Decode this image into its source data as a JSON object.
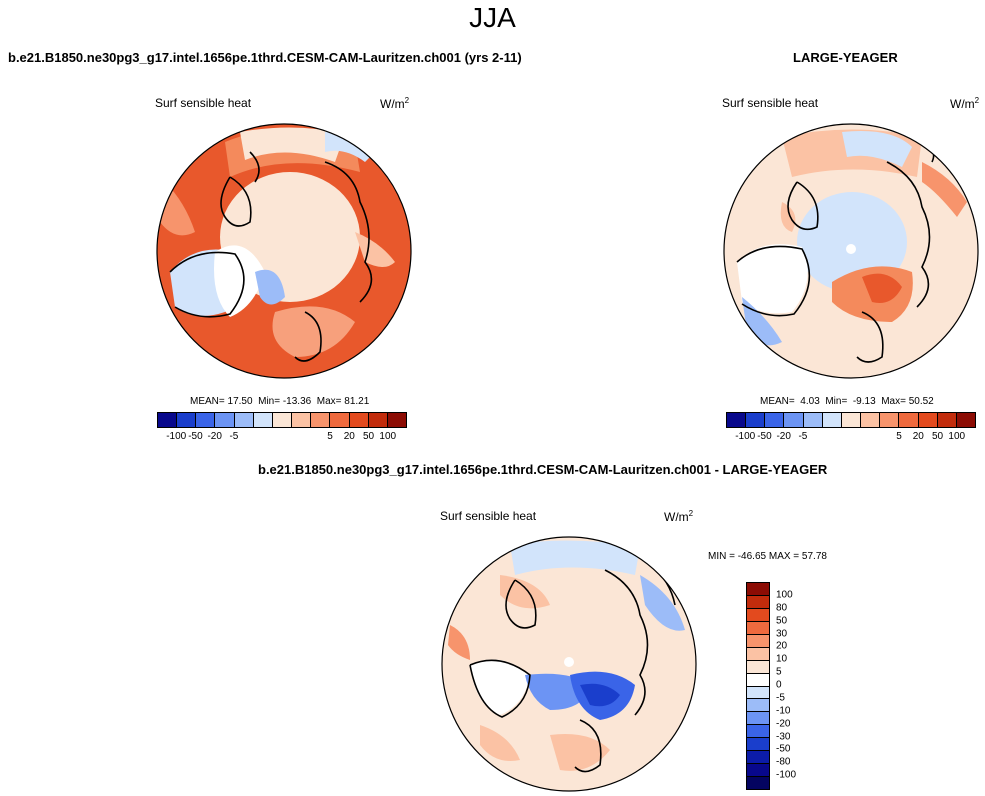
{
  "season": "JJA",
  "panels": {
    "model": {
      "title": "b.e21.B1850.ne30pg3_g17.intel.1656pe.1thrd.CESM-CAM-Lauritzen.ch001 (yrs 2-11)",
      "variable": "Surf sensible heat",
      "units": "W/m",
      "units_exp": "2",
      "mean_label": "MEAN=",
      "mean": "17.50",
      "min_label": "Min=",
      "min": "-13.36",
      "max_label": "Max=",
      "max": "81.21"
    },
    "obs": {
      "title": "LARGE-YEAGER",
      "variable": "Surf sensible heat",
      "units": "W/m",
      "units_exp": "2",
      "mean_label": "MEAN=",
      "mean": "4.03",
      "min_label": "Min=",
      "min": "-9.13",
      "max_label": "Max=",
      "max": "50.52"
    },
    "diff": {
      "title": "b.e21.B1850.ne30pg3_g17.intel.1656pe.1thrd.CESM-CAM-Lauritzen.ch001 - LARGE-YEAGER",
      "variable": "Surf sensible heat",
      "units": "W/m",
      "units_exp": "2",
      "minmax": "MIN = -46.65 MAX =  57.78"
    }
  },
  "colorbar": {
    "colors": [
      "#08088c",
      "#1a3ecc",
      "#3a64e8",
      "#6c94f4",
      "#9cbcf8",
      "#d2e4fb",
      "#fbe6d6",
      "#fbc2a4",
      "#f7946c",
      "#ef6a3e",
      "#e34a1e",
      "#c22c0c",
      "#8c0c04"
    ],
    "horizontal_ticks": [
      "-100",
      "-50",
      "-20",
      "-5",
      "5",
      "20",
      "50",
      "100"
    ],
    "vertical_ticks": [
      "100",
      "80",
      "50",
      "30",
      "20",
      "10",
      "5",
      "0",
      "-5",
      "-10",
      "-20",
      "-30",
      "-50",
      "-80",
      "-100"
    ]
  },
  "vertical_colors": [
    "#8c0c04",
    "#c22c0c",
    "#e34a1e",
    "#ef6a3e",
    "#f7946c",
    "#fbc2a4",
    "#fbe6d6",
    "#ffffff",
    "#d2e4fb",
    "#9cbcf8",
    "#6c94f4",
    "#3a64e8",
    "#1a3ecc",
    "#0c1ca8",
    "#08088c",
    "#040460"
  ]
}
